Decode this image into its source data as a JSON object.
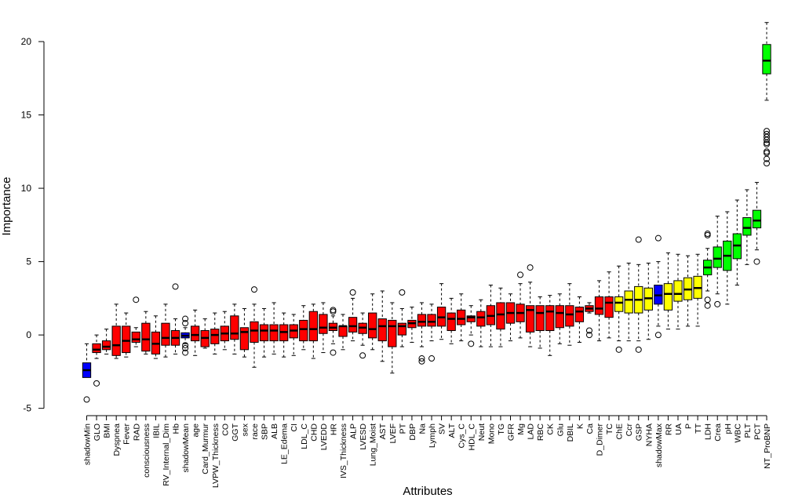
{
  "colors": {
    "rejected": "#ff0000",
    "tentative": "#ffff00",
    "confirmed": "#00ff00",
    "shadow": "#0000ff",
    "stroke": "#000000",
    "background": "#ffffff"
  },
  "chart_data": {
    "type": "box",
    "title": "",
    "xlabel": "Attributes",
    "ylabel": "Importance",
    "ylim": [
      -5.5,
      22.3
    ],
    "yticks": [
      -5,
      0,
      5,
      10,
      15,
      20
    ],
    "grid": false,
    "legend": "none",
    "boxes": [
      {
        "label": "shadowMin",
        "group": "shadow",
        "lw": -2.6,
        "q1": -2.9,
        "med": -2.4,
        "q3": -1.9,
        "uw": -0.6,
        "out": [
          -4.4
        ]
      },
      {
        "label": "GLO",
        "group": "rejected",
        "lw": -1.6,
        "q1": -1.2,
        "med": -1.0,
        "q3": -0.6,
        "uw": 0.0,
        "out": [
          -3.3
        ]
      },
      {
        "label": "BMI",
        "group": "rejected",
        "lw": -1.3,
        "q1": -1.0,
        "med": -0.8,
        "q3": -0.4,
        "uw": 0.4,
        "out": []
      },
      {
        "label": "Dyspnea",
        "group": "rejected",
        "lw": -1.6,
        "q1": -1.4,
        "med": -0.7,
        "q3": 0.6,
        "uw": 2.1,
        "out": []
      },
      {
        "label": "Fever",
        "group": "rejected",
        "lw": -1.5,
        "q1": -1.2,
        "med": -0.4,
        "q3": 0.6,
        "uw": 1.5,
        "out": []
      },
      {
        "label": "RAD",
        "group": "rejected",
        "lw": -0.8,
        "q1": -0.5,
        "med": -0.3,
        "q3": 0.2,
        "uw": 0.5,
        "out": [
          2.4
        ]
      },
      {
        "label": "consciousness",
        "group": "rejected",
        "lw": -1.3,
        "q1": -1.1,
        "med": -0.3,
        "q3": 0.8,
        "uw": 1.6,
        "out": []
      },
      {
        "label": "IBIL",
        "group": "rejected",
        "lw": -1.6,
        "q1": -1.3,
        "med": -0.6,
        "q3": 0.2,
        "uw": 1.3,
        "out": []
      },
      {
        "label": "RV_Internal_Dim",
        "group": "rejected",
        "lw": -1.5,
        "q1": -0.7,
        "med": -0.2,
        "q3": 0.8,
        "uw": 2.1,
        "out": []
      },
      {
        "label": "Hb",
        "group": "rejected",
        "lw": -1.3,
        "q1": -0.7,
        "med": -0.2,
        "q3": 0.3,
        "uw": 1.1,
        "out": [
          3.3
        ]
      },
      {
        "label": "shadowMean",
        "group": "shadow",
        "lw": -0.6,
        "q1": -0.2,
        "med": -0.05,
        "q3": 0.15,
        "uw": 0.5,
        "out": [
          -1.2,
          -0.9,
          -0.7,
          0.8,
          1.1
        ]
      },
      {
        "label": "age",
        "group": "rejected",
        "lw": -1.4,
        "q1": -0.4,
        "med": 0.0,
        "q3": 0.6,
        "uw": 1.7,
        "out": []
      },
      {
        "label": "Card_Murmur",
        "group": "rejected",
        "lw": -0.9,
        "q1": -0.8,
        "med": -0.2,
        "q3": 0.3,
        "uw": 1.1,
        "out": []
      },
      {
        "label": "LVPW_Thickness",
        "group": "rejected",
        "lw": -1.3,
        "q1": -0.6,
        "med": 0.0,
        "q3": 0.4,
        "uw": 1.5,
        "out": []
      },
      {
        "label": "CO",
        "group": "rejected",
        "lw": -1.0,
        "q1": -0.4,
        "med": 0.1,
        "q3": 0.6,
        "uw": 1.6,
        "out": []
      },
      {
        "label": "GGT",
        "group": "rejected",
        "lw": -1.3,
        "q1": -0.3,
        "med": 0.1,
        "q3": 1.3,
        "uw": 2.1,
        "out": []
      },
      {
        "label": "sex",
        "group": "rejected",
        "lw": -1.5,
        "q1": -1.0,
        "med": 0.2,
        "q3": 0.5,
        "uw": 1.8,
        "out": []
      },
      {
        "label": "race",
        "group": "rejected",
        "lw": -2.2,
        "q1": -0.5,
        "med": 0.3,
        "q3": 0.9,
        "uw": 2.1,
        "out": [
          3.1
        ]
      },
      {
        "label": "SBP",
        "group": "rejected",
        "lw": -1.5,
        "q1": -0.4,
        "med": 0.3,
        "q3": 0.7,
        "uw": 1.8,
        "out": []
      },
      {
        "label": "ALB",
        "group": "rejected",
        "lw": -1.3,
        "q1": -0.4,
        "med": 0.3,
        "q3": 0.7,
        "uw": 2.2,
        "out": []
      },
      {
        "label": "LE_Edema",
        "group": "rejected",
        "lw": -1.5,
        "q1": -0.4,
        "med": 0.2,
        "q3": 0.7,
        "uw": 1.5,
        "out": []
      },
      {
        "label": "CI",
        "group": "rejected",
        "lw": -1.4,
        "q1": -0.2,
        "med": 0.3,
        "q3": 0.7,
        "uw": 1.4,
        "out": []
      },
      {
        "label": "LDL_C",
        "group": "rejected",
        "lw": -1.0,
        "q1": -0.4,
        "med": 0.4,
        "q3": 1.0,
        "uw": 2.0,
        "out": []
      },
      {
        "label": "CHD",
        "group": "rejected",
        "lw": -1.6,
        "q1": -0.4,
        "med": 0.4,
        "q3": 1.6,
        "uw": 2.1,
        "out": []
      },
      {
        "label": "LVEDD",
        "group": "rejected",
        "lw": -1.2,
        "q1": 0.1,
        "med": 0.5,
        "q3": 1.4,
        "uw": 2.2,
        "out": []
      },
      {
        "label": "HR",
        "group": "rejected",
        "lw": -0.6,
        "q1": 0.3,
        "med": 0.5,
        "q3": 0.8,
        "uw": 1.3,
        "out": [
          -1.2,
          1.6,
          1.7
        ]
      },
      {
        "label": "IVS_Thickness",
        "group": "rejected",
        "lw": -1.0,
        "q1": -0.1,
        "med": 0.6,
        "q3": 0.6,
        "uw": 1.4,
        "out": []
      },
      {
        "label": "ALP",
        "group": "rejected",
        "lw": -0.4,
        "q1": 0.2,
        "med": 0.6,
        "q3": 1.2,
        "uw": 2.5,
        "out": [
          2.9
        ]
      },
      {
        "label": "LVESD",
        "group": "rejected",
        "lw": -0.7,
        "q1": 0.1,
        "med": 0.5,
        "q3": 0.8,
        "uw": 1.5,
        "out": [
          -1.4
        ]
      },
      {
        "label": "Lung_Moist",
        "group": "rejected",
        "lw": -1.0,
        "q1": -0.2,
        "med": 0.4,
        "q3": 1.5,
        "uw": 2.8,
        "out": []
      },
      {
        "label": "AST",
        "group": "rejected",
        "lw": -1.8,
        "q1": -0.4,
        "med": 0.6,
        "q3": 1.1,
        "uw": 3.0,
        "out": []
      },
      {
        "label": "LVEF",
        "group": "rejected",
        "lw": -2.6,
        "q1": -0.8,
        "med": 0.6,
        "q3": 1.0,
        "uw": 2.2,
        "out": []
      },
      {
        "label": "PT",
        "group": "rejected",
        "lw": -0.8,
        "q1": 0.0,
        "med": 0.6,
        "q3": 0.8,
        "uw": 1.8,
        "out": [
          2.9
        ]
      },
      {
        "label": "DBP",
        "group": "rejected",
        "lw": -0.5,
        "q1": 0.5,
        "med": 0.8,
        "q3": 1.0,
        "uw": 1.9,
        "out": []
      },
      {
        "label": "Na",
        "group": "rejected",
        "lw": -0.8,
        "q1": 0.6,
        "med": 0.9,
        "q3": 1.4,
        "uw": 2.2,
        "out": [
          -1.6,
          -1.8
        ]
      },
      {
        "label": "Lymph",
        "group": "rejected",
        "lw": -0.4,
        "q1": 0.6,
        "med": 0.9,
        "q3": 1.4,
        "uw": 2.1,
        "out": [
          -1.6
        ]
      },
      {
        "label": "SV",
        "group": "rejected",
        "lw": -0.3,
        "q1": 0.6,
        "med": 1.2,
        "q3": 1.9,
        "uw": 3.5,
        "out": []
      },
      {
        "label": "ALT",
        "group": "rejected",
        "lw": -0.6,
        "q1": 0.3,
        "med": 1.1,
        "q3": 1.5,
        "uw": 2.5,
        "out": []
      },
      {
        "label": "Cys_C",
        "group": "rejected",
        "lw": -0.4,
        "q1": 0.7,
        "med": 1.1,
        "q3": 1.7,
        "uw": 2.8,
        "out": []
      },
      {
        "label": "HDL_C",
        "group": "rejected",
        "lw": 0.0,
        "q1": 0.9,
        "med": 1.2,
        "q3": 1.3,
        "uw": 2.0,
        "out": [
          -0.6
        ]
      },
      {
        "label": "Neut",
        "group": "rejected",
        "lw": -0.8,
        "q1": 0.6,
        "med": 1.2,
        "q3": 1.6,
        "uw": 2.4,
        "out": []
      },
      {
        "label": "Mono",
        "group": "rejected",
        "lw": -0.8,
        "q1": 0.7,
        "med": 1.3,
        "q3": 2.0,
        "uw": 3.4,
        "out": []
      },
      {
        "label": "TG",
        "group": "rejected",
        "lw": -0.8,
        "q1": 0.4,
        "med": 1.4,
        "q3": 2.2,
        "uw": 3.2,
        "out": []
      },
      {
        "label": "GFR",
        "group": "rejected",
        "lw": -0.4,
        "q1": 0.8,
        "med": 1.5,
        "q3": 2.2,
        "uw": 2.8,
        "out": []
      },
      {
        "label": "Mg",
        "group": "rejected",
        "lw": -0.2,
        "q1": 0.9,
        "med": 1.5,
        "q3": 2.1,
        "uw": 3.5,
        "out": [
          4.1
        ]
      },
      {
        "label": "LAD",
        "group": "rejected",
        "lw": -0.8,
        "q1": 0.2,
        "med": 1.7,
        "q3": 2.0,
        "uw": 3.6,
        "out": [
          4.6
        ]
      },
      {
        "label": "RBC",
        "group": "rejected",
        "lw": -0.9,
        "q1": 0.3,
        "med": 1.5,
        "q3": 2.0,
        "uw": 2.6,
        "out": []
      },
      {
        "label": "CK",
        "group": "rejected",
        "lw": -1.4,
        "q1": 0.3,
        "med": 1.6,
        "q3": 2.0,
        "uw": 2.7,
        "out": []
      },
      {
        "label": "Glu",
        "group": "rejected",
        "lw": -0.6,
        "q1": 0.5,
        "med": 1.5,
        "q3": 2.0,
        "uw": 2.8,
        "out": []
      },
      {
        "label": "DBIL",
        "group": "rejected",
        "lw": -0.7,
        "q1": 0.6,
        "med": 1.4,
        "q3": 2.0,
        "uw": 3.5,
        "out": []
      },
      {
        "label": "K",
        "group": "rejected",
        "lw": -0.5,
        "q1": 0.9,
        "med": 1.6,
        "q3": 1.9,
        "uw": 2.6,
        "out": []
      },
      {
        "label": "Ca",
        "group": "rejected",
        "lw": 1.5,
        "q1": 1.6,
        "med": 1.8,
        "q3": 2.0,
        "uw": 2.2,
        "out": [
          0.0,
          0.3
        ]
      },
      {
        "label": "D_Dimer",
        "group": "rejected",
        "lw": -0.4,
        "q1": 1.4,
        "med": 1.8,
        "q3": 2.6,
        "uw": 3.7,
        "out": []
      },
      {
        "label": "TC",
        "group": "rejected",
        "lw": -0.2,
        "q1": 1.2,
        "med": 2.2,
        "q3": 2.6,
        "uw": 4.3,
        "out": []
      },
      {
        "label": "ChE",
        "group": "tentative",
        "lw": -0.4,
        "q1": 1.6,
        "med": 2.2,
        "q3": 2.6,
        "uw": 4.7,
        "out": [
          -1.0
        ]
      },
      {
        "label": "Ccr",
        "group": "tentative",
        "lw": -0.4,
        "q1": 1.5,
        "med": 2.4,
        "q3": 3.0,
        "uw": 4.9,
        "out": []
      },
      {
        "label": "GSP",
        "group": "tentative",
        "lw": -0.4,
        "q1": 1.5,
        "med": 2.4,
        "q3": 3.3,
        "uw": 4.8,
        "out": [
          -1.0,
          6.5
        ]
      },
      {
        "label": "NYHA",
        "group": "tentative",
        "lw": -0.3,
        "q1": 1.7,
        "med": 2.5,
        "q3": 3.2,
        "uw": 4.9,
        "out": []
      },
      {
        "label": "shadowMax",
        "group": "shadow",
        "lw": 0.6,
        "q1": 2.1,
        "med": 2.7,
        "q3": 3.4,
        "uw": 5.0,
        "out": [
          0.0,
          6.6
        ]
      },
      {
        "label": "RR",
        "group": "tentative",
        "lw": 0.4,
        "q1": 1.7,
        "med": 2.8,
        "q3": 3.5,
        "uw": 5.6,
        "out": []
      },
      {
        "label": "UA",
        "group": "tentative",
        "lw": 0.4,
        "q1": 2.3,
        "med": 2.8,
        "q3": 3.7,
        "uw": 5.5,
        "out": []
      },
      {
        "label": "P",
        "group": "tentative",
        "lw": 0.6,
        "q1": 2.4,
        "med": 3.1,
        "q3": 3.9,
        "uw": 5.4,
        "out": []
      },
      {
        "label": "TT",
        "group": "tentative",
        "lw": 0.6,
        "q1": 2.5,
        "med": 3.2,
        "q3": 4.0,
        "uw": 5.5,
        "out": []
      },
      {
        "label": "LDH",
        "group": "confirmed",
        "lw": 3.0,
        "q1": 4.1,
        "med": 4.6,
        "q3": 5.1,
        "uw": 5.9,
        "out": [
          2.0,
          2.4,
          6.8,
          6.9
        ]
      },
      {
        "label": "Crea",
        "group": "confirmed",
        "lw": 2.8,
        "q1": 4.6,
        "med": 5.2,
        "q3": 6.0,
        "uw": 8.1,
        "out": [
          2.1
        ]
      },
      {
        "label": "pH",
        "group": "confirmed",
        "lw": 2.1,
        "q1": 4.4,
        "med": 5.4,
        "q3": 6.4,
        "uw": 8.4,
        "out": []
      },
      {
        "label": "WBC",
        "group": "confirmed",
        "lw": 3.4,
        "q1": 5.2,
        "med": 6.1,
        "q3": 6.9,
        "uw": 9.2,
        "out": []
      },
      {
        "label": "PLT",
        "group": "confirmed",
        "lw": 4.8,
        "q1": 6.8,
        "med": 7.3,
        "q3": 8.0,
        "uw": 9.9,
        "out": []
      },
      {
        "label": "PCT",
        "group": "confirmed",
        "lw": 5.8,
        "q1": 7.3,
        "med": 7.8,
        "q3": 8.5,
        "uw": 10.4,
        "out": [
          5.0
        ]
      },
      {
        "label": "NT_ProBNP",
        "group": "confirmed",
        "lw": 16.0,
        "q1": 17.8,
        "med": 18.7,
        "q3": 19.8,
        "uw": 21.3,
        "out": [
          11.7,
          12.0,
          12.4,
          12.5,
          13.0,
          13.1,
          13.3,
          13.5,
          13.7,
          13.9
        ]
      }
    ]
  }
}
